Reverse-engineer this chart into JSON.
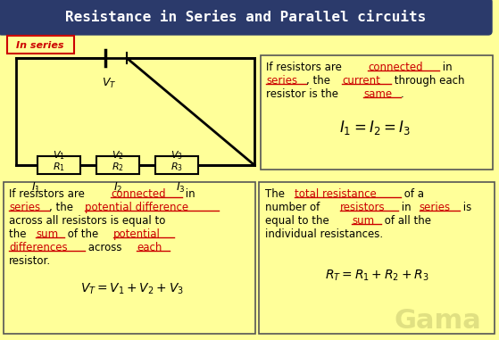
{
  "bg_color": "#FFFF99",
  "title_text": "Resistance in Series and Parallel circuits",
  "title_bg": "#2B3A6B",
  "title_color": "#FFFFFF",
  "label_in_series": "In series",
  "label_border_color": "#CC0000",
  "circuit_color": "#000000",
  "resistor_fill": "#FFFF99",
  "text_color_black": "#000000",
  "text_color_red": "#CC0000",
  "box_border_color": "#555555",
  "watermark": "Gama",
  "watermark_color": "#C8C870"
}
